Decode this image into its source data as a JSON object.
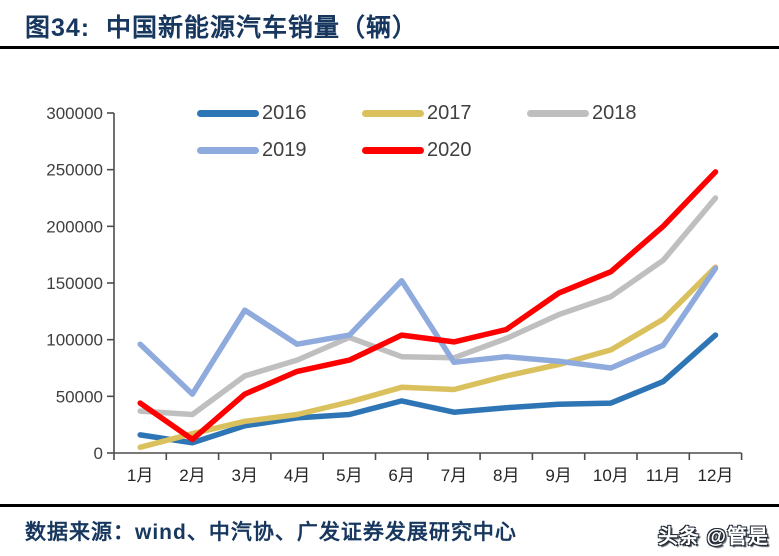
{
  "header": {
    "title": "图34:  中国新能源汽车销量（辆）"
  },
  "footer": {
    "source": "数据来源：wind、中汽协、广发证券发展研究中心",
    "watermark": "头条 @管是"
  },
  "colors": {
    "title_navy": "#17375E",
    "axis": "#4d4d4d",
    "rule_black": "#000000",
    "series_2016": "#2E75B6",
    "series_2017": "#DBC15E",
    "series_2018": "#BFBFBF",
    "series_2019": "#8FAADC",
    "series_2020": "#FF0000"
  },
  "chart_data": {
    "type": "line",
    "title": "中国新能源汽车销量（辆）",
    "categories": [
      "1月",
      "2月",
      "3月",
      "4月",
      "5月",
      "6月",
      "7月",
      "8月",
      "9月",
      "10月",
      "11月",
      "12月"
    ],
    "series": [
      {
        "name": "2016",
        "color": "#2E75B6",
        "values": [
          16000,
          9000,
          24000,
          31000,
          34000,
          46000,
          36000,
          40000,
          43000,
          44000,
          63000,
          104000
        ]
      },
      {
        "name": "2017",
        "color": "#DBC15E",
        "values": [
          5000,
          17000,
          28000,
          34000,
          45000,
          58000,
          56000,
          68000,
          78000,
          91000,
          118000,
          164000
        ]
      },
      {
        "name": "2018",
        "color": "#BFBFBF",
        "values": [
          37000,
          34000,
          68000,
          82000,
          102000,
          85000,
          84000,
          101000,
          122000,
          138000,
          170000,
          225000
        ]
      },
      {
        "name": "2019",
        "color": "#8FAADC",
        "values": [
          96000,
          52000,
          126000,
          96000,
          104000,
          152000,
          80000,
          85000,
          81000,
          75000,
          95000,
          163000
        ]
      },
      {
        "name": "2020",
        "color": "#FF0000",
        "values": [
          44000,
          12000,
          52000,
          72000,
          82000,
          104000,
          98000,
          109000,
          141000,
          160000,
          200000,
          248000
        ]
      }
    ],
    "xlabel": "",
    "ylabel": "",
    "ylim": [
      0,
      300000
    ],
    "ytick_step": 50000,
    "grid": false,
    "legend_position": "top-inside",
    "line_width": 5.5
  }
}
